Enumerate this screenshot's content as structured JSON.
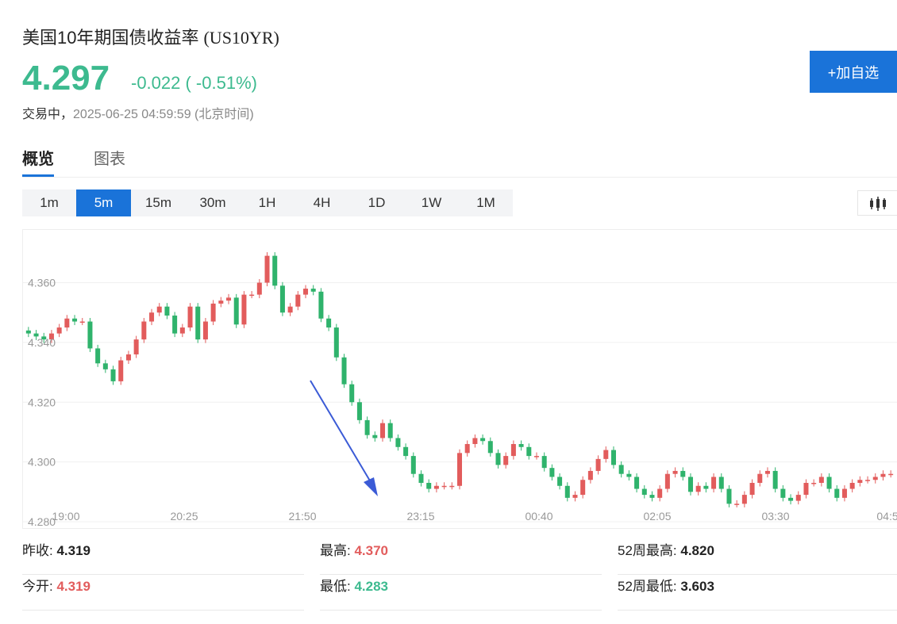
{
  "header": {
    "title": "美国10年期国债收益率",
    "code": "(US10YR)",
    "price": "4.297",
    "change": "-0.022 ( -0.51%)",
    "status_label": "交易中，",
    "timestamp": "2025-06-25 04:59:59",
    "timezone": "(北京时间)",
    "add_button": "+加自选"
  },
  "tabs": [
    {
      "label": "概览",
      "active": true
    },
    {
      "label": "图表",
      "active": false
    }
  ],
  "intervals": [
    {
      "label": "1m",
      "active": false
    },
    {
      "label": "5m",
      "active": true
    },
    {
      "label": "15m",
      "active": false
    },
    {
      "label": "30m",
      "active": false
    },
    {
      "label": "1H",
      "active": false
    },
    {
      "label": "4H",
      "active": false
    },
    {
      "label": "1D",
      "active": false
    },
    {
      "label": "1W",
      "active": false
    },
    {
      "label": "1M",
      "active": false
    }
  ],
  "chart_type_icon": "candlestick-icon",
  "colors": {
    "up": "#e25c5c",
    "down": "#2fb36c",
    "accent": "#1a73d9",
    "arrow": "#3b5bd6"
  },
  "chart_data": {
    "type": "candlestick",
    "ylim": [
      4.28,
      4.375
    ],
    "yticks": [
      "4.360",
      "4.340",
      "4.320",
      "4.300",
      "4.280"
    ],
    "xticks": [
      "19:00",
      "20:25",
      "21:50",
      "23:15",
      "00:40",
      "02:05",
      "03:30",
      "04:5"
    ],
    "grid": true,
    "closes": [
      4.343,
      4.342,
      4.341,
      4.343,
      4.345,
      4.348,
      4.347,
      4.347,
      4.338,
      4.333,
      4.331,
      4.327,
      4.334,
      4.336,
      4.341,
      4.347,
      4.35,
      4.352,
      4.349,
      4.343,
      4.345,
      4.352,
      4.341,
      4.347,
      4.353,
      4.354,
      4.355,
      4.346,
      4.356,
      4.356,
      4.36,
      4.369,
      4.359,
      4.35,
      4.352,
      4.356,
      4.358,
      4.357,
      4.348,
      4.345,
      4.335,
      4.326,
      4.32,
      4.314,
      4.309,
      4.308,
      4.313,
      4.308,
      4.305,
      4.302,
      4.296,
      4.293,
      4.291,
      4.292,
      4.292,
      4.292,
      4.303,
      4.306,
      4.308,
      4.307,
      4.303,
      4.299,
      4.302,
      4.306,
      4.305,
      4.302,
      4.302,
      4.298,
      4.295,
      4.292,
      4.288,
      4.289,
      4.294,
      4.297,
      4.301,
      4.304,
      4.299,
      4.296,
      4.295,
      4.291,
      4.289,
      4.288,
      4.291,
      4.296,
      4.297,
      4.295,
      4.29,
      4.292,
      4.291,
      4.295,
      4.291,
      4.286,
      4.286,
      4.289,
      4.293,
      4.296,
      4.297,
      4.291,
      4.288,
      4.287,
      4.289,
      4.293,
      4.293,
      4.295,
      4.291,
      4.288,
      4.291,
      4.293,
      4.294,
      4.294,
      4.295,
      4.296,
      4.296
    ],
    "annotation": "down-trend-arrow"
  },
  "stats": {
    "prev_close_label": "昨收:",
    "prev_close": "4.319",
    "high_label": "最高:",
    "high": "4.370",
    "high52_label": "52周最高:",
    "high52": "4.820",
    "open_label": "今开:",
    "open": "4.319",
    "low_label": "最低:",
    "low": "4.283",
    "low52_label": "52周最低:",
    "low52": "3.603"
  }
}
